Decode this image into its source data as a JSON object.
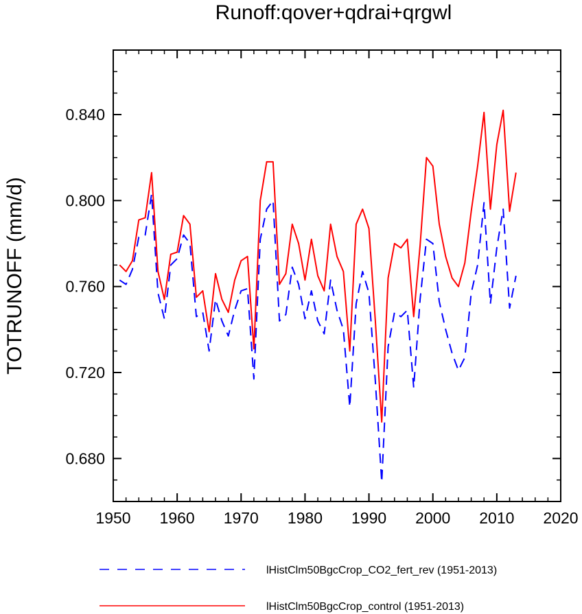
{
  "chart_data": {
    "type": "line",
    "title": "Runoff:qover+qdrai+qrgwl",
    "xlabel": "",
    "ylabel": "TOTRUNOFF  (mm/d)",
    "xlim": [
      1950,
      2020
    ],
    "ylim": [
      0.66,
      0.87
    ],
    "x_ticks": [
      "1950",
      "1960",
      "1970",
      "1980",
      "1990",
      "2000",
      "2010",
      "2020"
    ],
    "y_ticks": [
      "0.680",
      "0.720",
      "0.760",
      "0.800",
      "0.840"
    ],
    "grid": false,
    "legend_position": "bottom",
    "x": [
      1951,
      1952,
      1953,
      1954,
      1955,
      1956,
      1957,
      1958,
      1959,
      1960,
      1961,
      1962,
      1963,
      1964,
      1965,
      1966,
      1967,
      1968,
      1969,
      1970,
      1971,
      1972,
      1973,
      1974,
      1975,
      1976,
      1977,
      1978,
      1979,
      1980,
      1981,
      1982,
      1983,
      1984,
      1985,
      1986,
      1987,
      1988,
      1989,
      1990,
      1991,
      1992,
      1993,
      1994,
      1995,
      1996,
      1997,
      1998,
      1999,
      2000,
      2001,
      2002,
      2003,
      2004,
      2005,
      2006,
      2007,
      2008,
      2009,
      2010,
      2011,
      2012,
      2013
    ],
    "series": [
      {
        "name": "lHistClm50BgcCrop_CO2_fert_rev (1951-2013)",
        "color": "#0000ff",
        "dash": "dashed",
        "values": [
          0.763,
          0.761,
          0.768,
          0.783,
          0.784,
          0.803,
          0.757,
          0.745,
          0.77,
          0.773,
          0.784,
          0.78,
          0.746,
          0.748,
          0.73,
          0.754,
          0.744,
          0.737,
          0.749,
          0.758,
          0.759,
          0.717,
          0.782,
          0.796,
          0.8,
          0.744,
          0.747,
          0.769,
          0.761,
          0.745,
          0.758,
          0.744,
          0.738,
          0.763,
          0.749,
          0.74,
          0.704,
          0.752,
          0.767,
          0.757,
          0.716,
          0.669,
          0.732,
          0.748,
          0.746,
          0.749,
          0.713,
          0.754,
          0.782,
          0.78,
          0.753,
          0.74,
          0.729,
          0.721,
          0.727,
          0.757,
          0.77,
          0.799,
          0.752,
          0.778,
          0.796,
          0.75,
          0.765
        ]
      },
      {
        "name": "lHistClm50BgcCrop_control (1951-2013)",
        "color": "#ff0000",
        "dash": "solid",
        "values": [
          0.77,
          0.767,
          0.772,
          0.791,
          0.792,
          0.813,
          0.767,
          0.754,
          0.775,
          0.776,
          0.793,
          0.789,
          0.755,
          0.758,
          0.739,
          0.766,
          0.754,
          0.748,
          0.763,
          0.772,
          0.774,
          0.731,
          0.8,
          0.818,
          0.818,
          0.761,
          0.766,
          0.789,
          0.78,
          0.763,
          0.782,
          0.765,
          0.758,
          0.789,
          0.774,
          0.767,
          0.73,
          0.789,
          0.796,
          0.787,
          0.744,
          0.697,
          0.764,
          0.78,
          0.778,
          0.782,
          0.746,
          0.779,
          0.82,
          0.816,
          0.789,
          0.774,
          0.764,
          0.76,
          0.771,
          0.795,
          0.816,
          0.841,
          0.796,
          0.826,
          0.842,
          0.795,
          0.813
        ]
      }
    ]
  }
}
